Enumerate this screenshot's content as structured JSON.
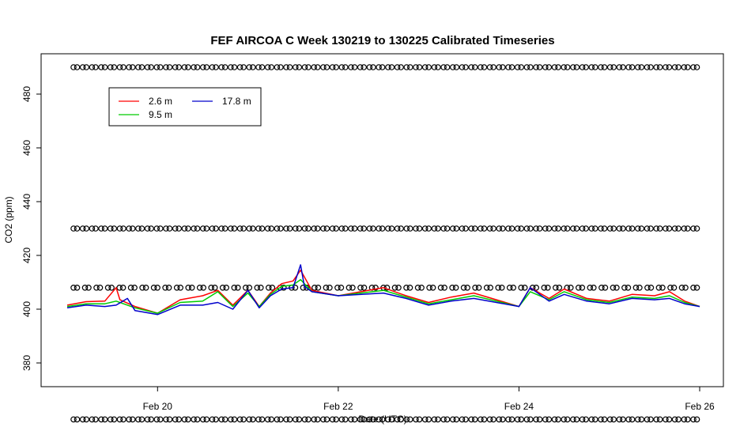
{
  "chart_data": {
    "type": "line",
    "title": "FEF AIRCOA C  Week 130219 to 130225  Calibrated Timeseries",
    "xlabel": "Date (UTC)",
    "ylabel": "CO2 (ppm)",
    "xlim": [
      "2013-02-19",
      "2013-02-26"
    ],
    "ylim": [
      370,
      490
    ],
    "x_ticks": [
      {
        "date": "2013-02-20",
        "label": "Feb 20"
      },
      {
        "date": "2013-02-22",
        "label": "Feb 22"
      },
      {
        "date": "2013-02-24",
        "label": "Feb 24"
      },
      {
        "date": "2013-02-26",
        "label": "Feb 26"
      }
    ],
    "y_ticks": [
      380,
      400,
      420,
      440,
      460,
      480
    ],
    "grid": false,
    "legend": {
      "placement": "top-left",
      "entries": [
        {
          "name": "2.6 m",
          "color": "#ff0000"
        },
        {
          "name": "9.5 m",
          "color": "#00cc00"
        },
        {
          "name": "17.8 m",
          "color": "#0000cc"
        }
      ]
    },
    "series": [
      {
        "name": "2.6 m",
        "color": "#ff0000",
        "points": [
          [
            "2013-02-19 00:00",
            401.5
          ],
          [
            "2013-02-19 05:00",
            402.8
          ],
          [
            "2013-02-19 10:00",
            403.0
          ],
          [
            "2013-02-19 13:00",
            408.0
          ],
          [
            "2013-02-19 14:00",
            403.5
          ],
          [
            "2013-02-19 18:00",
            401.0
          ],
          [
            "2013-02-20 00:00",
            398.5
          ],
          [
            "2013-02-20 06:00",
            403.5
          ],
          [
            "2013-02-20 12:00",
            405.0
          ],
          [
            "2013-02-20 16:00",
            407.0
          ],
          [
            "2013-02-20 20:00",
            401.5
          ],
          [
            "2013-02-21 00:00",
            407.0
          ],
          [
            "2013-02-21 03:00",
            401.0
          ],
          [
            "2013-02-21 06:00",
            406.0
          ],
          [
            "2013-02-21 09:00",
            409.5
          ],
          [
            "2013-02-21 12:00",
            410.5
          ],
          [
            "2013-02-21 14:00",
            414.5
          ],
          [
            "2013-02-21 17:00",
            407.0
          ],
          [
            "2013-02-22 00:00",
            405.0
          ],
          [
            "2013-02-22 12:00",
            408.0
          ],
          [
            "2013-02-22 18:00",
            405.0
          ],
          [
            "2013-02-23 00:00",
            402.5
          ],
          [
            "2013-02-23 06:00",
            404.5
          ],
          [
            "2013-02-23 12:00",
            406.0
          ],
          [
            "2013-02-23 18:00",
            403.5
          ],
          [
            "2013-02-24 00:00",
            401.0
          ],
          [
            "2013-02-24 03:00",
            408.0
          ],
          [
            "2013-02-24 08:00",
            404.0
          ],
          [
            "2013-02-24 12:00",
            407.5
          ],
          [
            "2013-02-24 18:00",
            404.0
          ],
          [
            "2013-02-25 00:00",
            403.0
          ],
          [
            "2013-02-25 06:00",
            405.5
          ],
          [
            "2013-02-25 12:00",
            405.0
          ],
          [
            "2013-02-25 16:00",
            406.5
          ],
          [
            "2013-02-25 20:00",
            403.0
          ],
          [
            "2013-02-26 00:00",
            401.0
          ]
        ]
      },
      {
        "name": "9.5 m",
        "color": "#00cc00",
        "points": [
          [
            "2013-02-19 00:00",
            401.0
          ],
          [
            "2013-02-19 05:00",
            402.0
          ],
          [
            "2013-02-19 10:00",
            402.0
          ],
          [
            "2013-02-19 13:00",
            403.0
          ],
          [
            "2013-02-19 18:00",
            400.5
          ],
          [
            "2013-02-20 00:00",
            398.5
          ],
          [
            "2013-02-20 06:00",
            402.5
          ],
          [
            "2013-02-20 12:00",
            403.0
          ],
          [
            "2013-02-20 16:00",
            406.5
          ],
          [
            "2013-02-20 20:00",
            401.0
          ],
          [
            "2013-02-21 00:00",
            406.0
          ],
          [
            "2013-02-21 03:00",
            401.0
          ],
          [
            "2013-02-21 06:00",
            405.5
          ],
          [
            "2013-02-21 09:00",
            408.5
          ],
          [
            "2013-02-21 12:00",
            409.0
          ],
          [
            "2013-02-21 14:00",
            411.0
          ],
          [
            "2013-02-21 17:00",
            406.5
          ],
          [
            "2013-02-22 00:00",
            405.0
          ],
          [
            "2013-02-22 12:00",
            407.0
          ],
          [
            "2013-02-22 18:00",
            404.5
          ],
          [
            "2013-02-23 00:00",
            402.0
          ],
          [
            "2013-02-23 06:00",
            403.5
          ],
          [
            "2013-02-23 12:00",
            405.0
          ],
          [
            "2013-02-23 18:00",
            403.0
          ],
          [
            "2013-02-24 00:00",
            401.0
          ],
          [
            "2013-02-24 03:00",
            406.5
          ],
          [
            "2013-02-24 08:00",
            403.5
          ],
          [
            "2013-02-24 12:00",
            406.5
          ],
          [
            "2013-02-24 18:00",
            403.5
          ],
          [
            "2013-02-25 00:00",
            402.5
          ],
          [
            "2013-02-25 06:00",
            404.5
          ],
          [
            "2013-02-25 12:00",
            404.0
          ],
          [
            "2013-02-25 16:00",
            405.0
          ],
          [
            "2013-02-25 20:00",
            402.5
          ],
          [
            "2013-02-26 00:00",
            401.0
          ]
        ]
      },
      {
        "name": "17.8 m",
        "color": "#0000cc",
        "points": [
          [
            "2013-02-19 00:00",
            400.5
          ],
          [
            "2013-02-19 05:00",
            401.5
          ],
          [
            "2013-02-19 10:00",
            401.0
          ],
          [
            "2013-02-19 13:00",
            401.5
          ],
          [
            "2013-02-19 16:00",
            404.0
          ],
          [
            "2013-02-19 18:00",
            399.5
          ],
          [
            "2013-02-20 00:00",
            398.0
          ],
          [
            "2013-02-20 06:00",
            401.5
          ],
          [
            "2013-02-20 12:00",
            401.5
          ],
          [
            "2013-02-20 16:00",
            402.5
          ],
          [
            "2013-02-20 20:00",
            400.0
          ],
          [
            "2013-02-21 00:00",
            407.0
          ],
          [
            "2013-02-21 03:00",
            400.5
          ],
          [
            "2013-02-21 06:00",
            405.0
          ],
          [
            "2013-02-21 09:00",
            407.5
          ],
          [
            "2013-02-21 12:00",
            408.0
          ],
          [
            "2013-02-21 14:00",
            416.5
          ],
          [
            "2013-02-21 15:00",
            408.5
          ],
          [
            "2013-02-21 17:00",
            406.5
          ],
          [
            "2013-02-22 00:00",
            405.0
          ],
          [
            "2013-02-22 12:00",
            406.0
          ],
          [
            "2013-02-22 18:00",
            404.0
          ],
          [
            "2013-02-23 00:00",
            401.5
          ],
          [
            "2013-02-23 06:00",
            403.0
          ],
          [
            "2013-02-23 12:00",
            404.0
          ],
          [
            "2013-02-23 18:00",
            402.5
          ],
          [
            "2013-02-24 00:00",
            401.0
          ],
          [
            "2013-02-24 03:00",
            408.0
          ],
          [
            "2013-02-24 08:00",
            403.0
          ],
          [
            "2013-02-24 12:00",
            405.5
          ],
          [
            "2013-02-24 18:00",
            403.0
          ],
          [
            "2013-02-25 00:00",
            402.0
          ],
          [
            "2013-02-25 06:00",
            404.0
          ],
          [
            "2013-02-25 12:00",
            403.5
          ],
          [
            "2013-02-25 16:00",
            404.0
          ],
          [
            "2013-02-25 20:00",
            402.0
          ],
          [
            "2013-02-26 00:00",
            401.0
          ]
        ]
      }
    ],
    "marker_rows": [
      {
        "y": 490,
        "count": 68
      },
      {
        "y": 430,
        "count": 68
      },
      {
        "y": 408,
        "count": 55
      },
      {
        "y": 359,
        "count": 68
      }
    ]
  }
}
